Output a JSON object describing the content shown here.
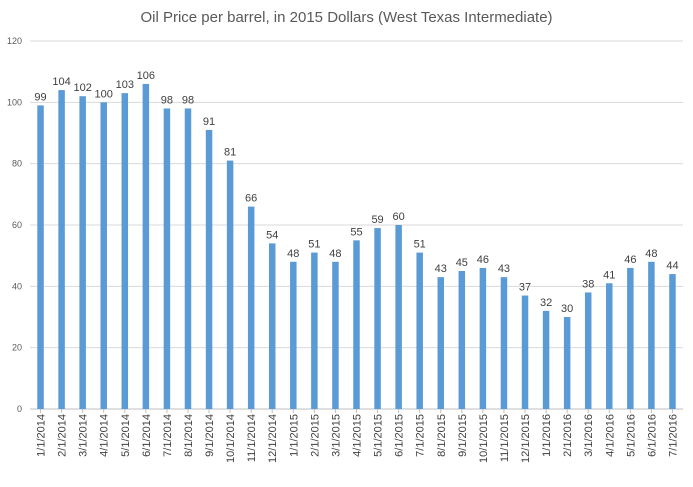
{
  "chart_data": {
    "type": "bar",
    "title": "Oil Price per barrel, in 2015 Dollars (West Texas Intermediate)",
    "xlabel": "",
    "ylabel": "",
    "ylim": [
      0,
      120
    ],
    "yticks": [
      0,
      20,
      40,
      60,
      80,
      100,
      120
    ],
    "grid": true,
    "bar_color": "#5B9BD5",
    "categories": [
      "1/1/2014",
      "2/1/2014",
      "3/1/2014",
      "4/1/2014",
      "5/1/2014",
      "6/1/2014",
      "7/1/2014",
      "8/1/2014",
      "9/1/2014",
      "10/1/2014",
      "11/1/2014",
      "12/1/2014",
      "1/1/2015",
      "2/1/2015",
      "3/1/2015",
      "4/1/2015",
      "5/1/2015",
      "6/1/2015",
      "7/1/2015",
      "8/1/2015",
      "9/1/2015",
      "10/1/2015",
      "11/1/2015",
      "12/1/2015",
      "1/1/2016",
      "2/1/2016",
      "3/1/2016",
      "4/1/2016",
      "5/1/2016",
      "6/1/2016",
      "7/1/2016"
    ],
    "values": [
      99,
      104,
      102,
      100,
      103,
      106,
      98,
      98,
      91,
      81,
      66,
      54,
      48,
      51,
      48,
      55,
      59,
      60,
      51,
      43,
      45,
      46,
      43,
      37,
      32,
      30,
      38,
      41,
      46,
      48,
      44
    ],
    "value_labels": [
      "99",
      "104",
      "102",
      "100",
      "103",
      "106",
      "98",
      "98",
      "91",
      "81",
      "66",
      "54",
      "48",
      "51",
      "48",
      "55",
      "59",
      "60",
      "51",
      "43",
      "45",
      "46",
      "43",
      "37",
      "32",
      "30",
      "38",
      "41",
      "46",
      "48",
      "44"
    ]
  }
}
